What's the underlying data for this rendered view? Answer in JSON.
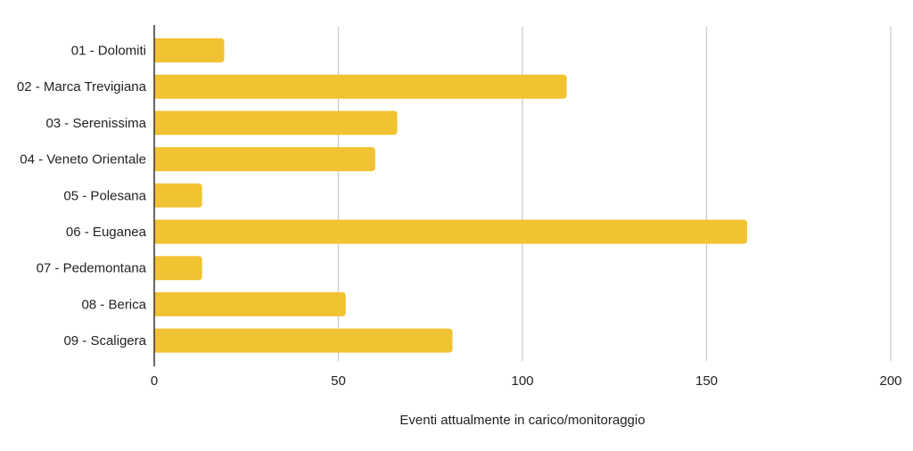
{
  "chart_data": {
    "type": "bar",
    "orientation": "horizontal",
    "categories": [
      "01 - Dolomiti",
      "02 - Marca Trevigiana",
      "03 - Serenissima",
      "04 - Veneto Orientale",
      "05 - Polesana",
      "06 - Euganea",
      "07 - Pedemontana",
      "08 - Berica",
      "09 - Scaligera"
    ],
    "values": [
      19,
      112,
      66,
      60,
      13,
      161,
      13,
      52,
      81
    ],
    "title": "",
    "xlabel": "Eventi attualmente in carico/monitoraggio",
    "ylabel": "",
    "xlim": [
      0,
      200
    ],
    "xticks": [
      0,
      50,
      100,
      150,
      200
    ],
    "xtick_labels": [
      "0",
      "50",
      "100",
      "150",
      "200"
    ],
    "grid": "vertical",
    "legend": "none",
    "colors": {
      "bar": "#F1C232",
      "grid": "#cccccc",
      "axis": "#333333",
      "text": "#222222"
    }
  }
}
